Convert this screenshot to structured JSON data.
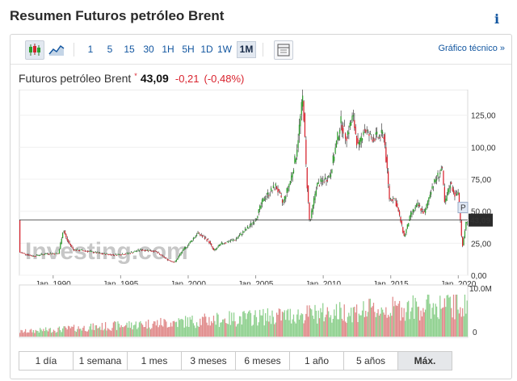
{
  "header": {
    "title": "Resumen Futuros petróleo Brent",
    "info_glyph": "i"
  },
  "toolbar": {
    "intervals": [
      "1",
      "5",
      "15",
      "30",
      "1H",
      "5H",
      "1D",
      "1W",
      "1M"
    ],
    "active_interval": "1M",
    "technical_link": "Gráfico técnico »"
  },
  "quote": {
    "name": "Futuros petróleo Brent",
    "marker": "*",
    "price": "43,09",
    "change": "-0,21",
    "change_pct": "(-0,48%)"
  },
  "chart_data": {
    "type": "candlestick",
    "x_ticks": [
      "Jan, 1990",
      "Jan, 1995",
      "Jan, 2000",
      "Jan, 2005",
      "Jan, 2010",
      "Jan, 2015",
      "Jan, 2020"
    ],
    "y_ticks": [
      "125,00",
      "100,00",
      "75,00",
      "50,00",
      "25,00",
      "0,00"
    ],
    "ylim": [
      0,
      145
    ],
    "current_price_label": "43,09",
    "current_price": 43.09,
    "price_badge": "P",
    "volume_ticks": [
      "10.0M",
      "0"
    ],
    "watermark": "Investing.com",
    "points": [
      [
        1987.5,
        18
      ],
      [
        1988.5,
        15
      ],
      [
        1989.5,
        17
      ],
      [
        1990.4,
        17
      ],
      [
        1990.75,
        36
      ],
      [
        1991.0,
        28
      ],
      [
        1991.5,
        20
      ],
      [
        1992.5,
        19
      ],
      [
        1993.5,
        17
      ],
      [
        1994.5,
        16
      ],
      [
        1995.5,
        17
      ],
      [
        1996.5,
        20
      ],
      [
        1997.5,
        19
      ],
      [
        1998.5,
        12
      ],
      [
        1999.0,
        10
      ],
      [
        1999.5,
        18
      ],
      [
        2000.0,
        24
      ],
      [
        2000.7,
        33
      ],
      [
        2001.5,
        27
      ],
      [
        2001.9,
        19
      ],
      [
        2002.5,
        25
      ],
      [
        2003.5,
        28
      ],
      [
        2004.5,
        38
      ],
      [
        2005.0,
        44
      ],
      [
        2005.6,
        60
      ],
      [
        2006.5,
        70
      ],
      [
        2007.0,
        56
      ],
      [
        2007.6,
        75
      ],
      [
        2008.0,
        95
      ],
      [
        2008.5,
        140
      ],
      [
        2008.75,
        80
      ],
      [
        2009.0,
        40
      ],
      [
        2009.5,
        70
      ],
      [
        2010.0,
        74
      ],
      [
        2010.5,
        78
      ],
      [
        2011.3,
        120
      ],
      [
        2011.7,
        108
      ],
      [
        2012.2,
        124
      ],
      [
        2012.6,
        98
      ],
      [
        2013.0,
        115
      ],
      [
        2013.5,
        108
      ],
      [
        2014.0,
        108
      ],
      [
        2014.5,
        110
      ],
      [
        2014.9,
        60
      ],
      [
        2015.3,
        60
      ],
      [
        2015.6,
        48
      ],
      [
        2016.0,
        30
      ],
      [
        2016.5,
        48
      ],
      [
        2017.0,
        55
      ],
      [
        2017.5,
        48
      ],
      [
        2018.0,
        68
      ],
      [
        2018.8,
        84
      ],
      [
        2019.0,
        55
      ],
      [
        2019.4,
        72
      ],
      [
        2019.8,
        62
      ],
      [
        2020.0,
        65
      ],
      [
        2020.3,
        22
      ],
      [
        2020.6,
        43
      ]
    ]
  },
  "periods": [
    "1 día",
    "1 semana",
    "1 mes",
    "3 meses",
    "6 meses",
    "1 año",
    "5 años",
    "Máx."
  ],
  "active_period": "Máx.",
  "colors": {
    "up": "#2e9e2e",
    "down": "#d9232e",
    "link": "#1256a0",
    "vol_up": "#8ed08e",
    "vol_down": "#e08a8a"
  }
}
